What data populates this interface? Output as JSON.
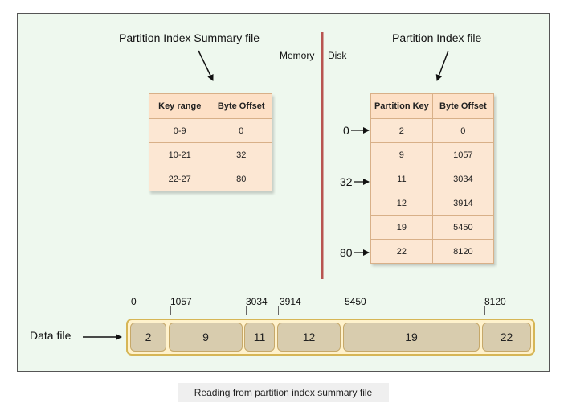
{
  "summary_title": "Partition Index Summary file",
  "index_title": "Partition Index file",
  "memory_label": "Memory",
  "disk_label": "Disk",
  "data_file_label": "Data file",
  "caption": "Reading from partition index summary file",
  "summary_table": {
    "headers": [
      "Key range",
      "Byte Offset"
    ],
    "rows": [
      [
        "0-9",
        "0"
      ],
      [
        "10-21",
        "32"
      ],
      [
        "22-27",
        "80"
      ]
    ]
  },
  "index_table": {
    "headers": [
      "Partition Key",
      "Byte Offset"
    ],
    "rows": [
      [
        "2",
        "0"
      ],
      [
        "9",
        "1057"
      ],
      [
        "11",
        "3034"
      ],
      [
        "12",
        "3914"
      ],
      [
        "19",
        "5450"
      ],
      [
        "22",
        "8120"
      ]
    ]
  },
  "row_pointers": [
    {
      "label": "0",
      "row": 0
    },
    {
      "label": "32",
      "row": 2
    },
    {
      "label": "80",
      "row": 5
    }
  ],
  "data_segments": [
    "2",
    "9",
    "11",
    "12",
    "19",
    "22"
  ],
  "offset_ticks": [
    "0",
    "1057",
    "3034",
    "3914",
    "5450",
    "8120"
  ],
  "colors": {
    "divider": "#b85450",
    "table_header": "#fde0c6",
    "table_cell": "#fce7d3",
    "data_bar": "#fff2cc",
    "segment": "#d8ccae"
  }
}
